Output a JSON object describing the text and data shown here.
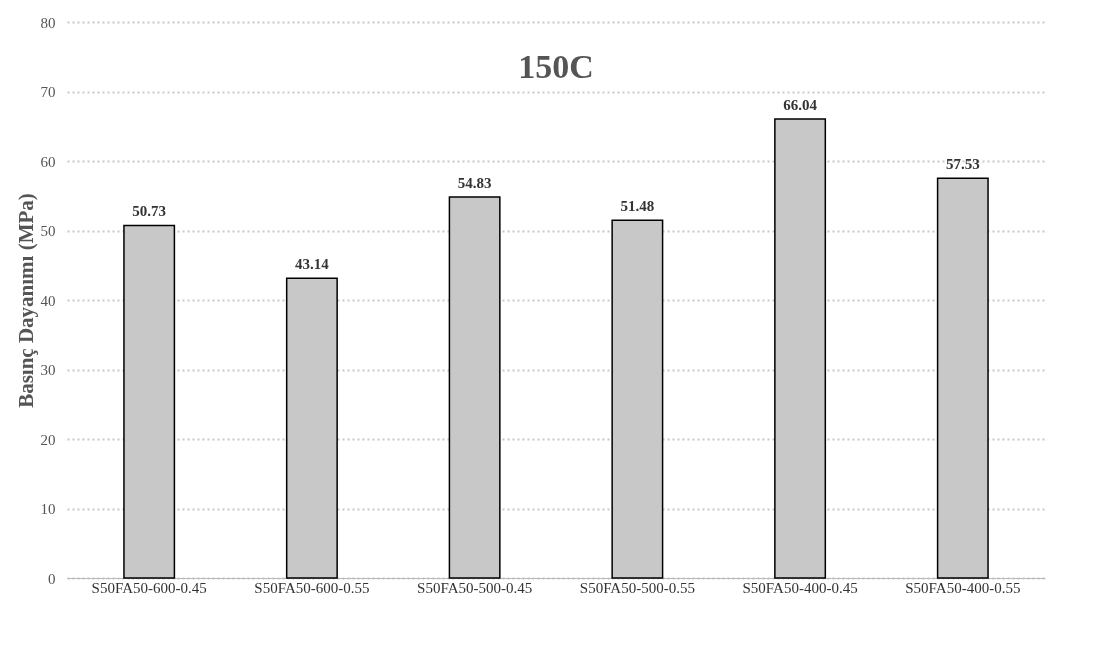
{
  "chart_data": {
    "type": "bar",
    "title": "150C",
    "ylabel": "Basınç Dayanımı (MPa)",
    "categories": [
      "S50FA50-600-0.45",
      "S50FA50-600-0.55",
      "S50FA50-500-0.45",
      "S50FA50-500-0.55",
      "S50FA50-400-0.45",
      "S50FA50-400-0.55"
    ],
    "values": [
      50.73,
      43.14,
      54.83,
      51.48,
      66.04,
      57.53
    ],
    "color": "#c8c8c8",
    "ylim": [
      0,
      80
    ],
    "yticks": [
      0,
      10,
      20,
      30,
      40,
      50,
      60,
      70,
      80
    ],
    "grid": "y",
    "data_labels": true
  }
}
